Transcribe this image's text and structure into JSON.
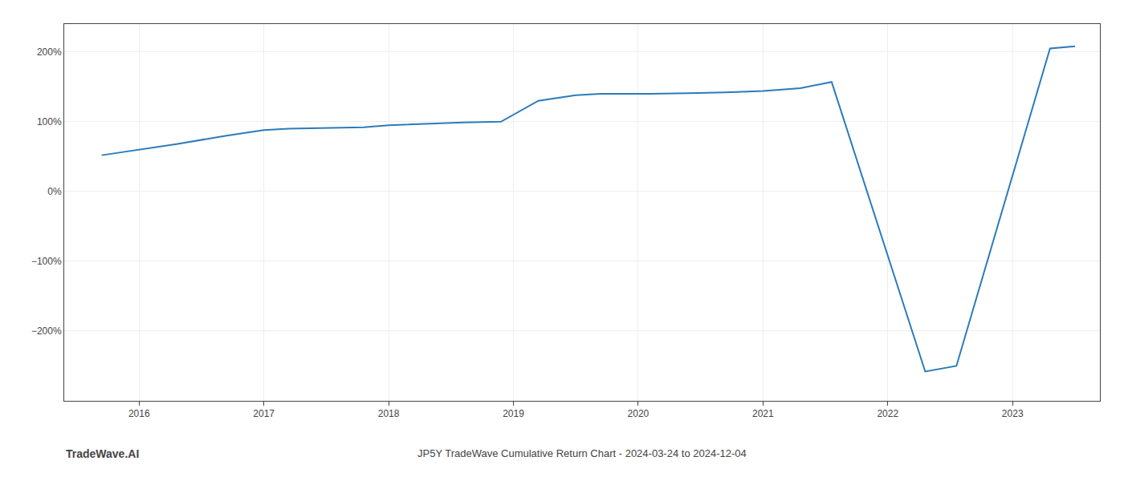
{
  "chart_data": {
    "type": "line",
    "x": [
      2015.7,
      2016.0,
      2016.3,
      2016.7,
      2017.0,
      2017.2,
      2017.5,
      2017.8,
      2018.0,
      2018.3,
      2018.6,
      2018.9,
      2019.2,
      2019.5,
      2019.7,
      2019.9,
      2020.1,
      2020.4,
      2020.7,
      2021.0,
      2021.3,
      2021.55,
      2022.3,
      2022.55,
      2023.3,
      2023.5
    ],
    "values": [
      52,
      60,
      68,
      80,
      88,
      90,
      91,
      92,
      95,
      97,
      99,
      100,
      130,
      138,
      140,
      140,
      140,
      141,
      142,
      144,
      148,
      157,
      -258,
      -250,
      205,
      208
    ],
    "color": "#2b7bba",
    "xlim": [
      2015.4,
      2023.7
    ],
    "ylim": [
      -300,
      240
    ],
    "xticks": [
      2016,
      2017,
      2018,
      2019,
      2020,
      2021,
      2022,
      2023
    ],
    "yticks": [
      {
        "value": -200,
        "label": "−200%"
      },
      {
        "value": -100,
        "label": "−100%"
      },
      {
        "value": 0,
        "label": "0%"
      },
      {
        "value": 100,
        "label": "100%"
      },
      {
        "value": 200,
        "label": "200%"
      }
    ],
    "grid": true,
    "annotations": [
      "TradeWave.AI",
      "JP5Y TradeWave Cumulative Return Chart - 2024-03-24 to 2024-12-04"
    ]
  }
}
